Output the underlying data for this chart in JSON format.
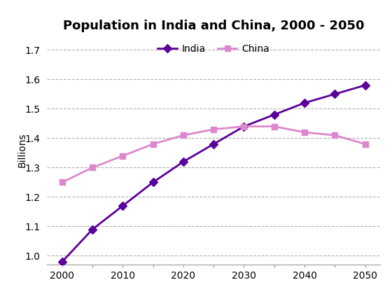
{
  "title": "Population in India and China, 2000 - 2050",
  "ylabel": "Billions",
  "years": [
    2000,
    2005,
    2010,
    2015,
    2020,
    2025,
    2030,
    2035,
    2040,
    2045,
    2050
  ],
  "india": [
    0.98,
    1.09,
    1.17,
    1.25,
    1.32,
    1.38,
    1.44,
    1.48,
    1.52,
    1.55,
    1.58
  ],
  "china": [
    1.25,
    1.3,
    1.34,
    1.38,
    1.41,
    1.43,
    1.44,
    1.44,
    1.42,
    1.41,
    1.38
  ],
  "india_color": "#5B009A",
  "china_color": "#DD88CC",
  "india_marker": "D",
  "china_marker": "s",
  "ylim": [
    0.97,
    1.75
  ],
  "yticks": [
    1.0,
    1.1,
    1.2,
    1.3,
    1.4,
    1.5,
    1.6,
    1.7
  ],
  "xticks": [
    2000,
    2005,
    2010,
    2015,
    2020,
    2025,
    2030,
    2035,
    2040,
    2045,
    2050
  ],
  "xtick_labels": [
    "2000",
    "",
    "2010",
    "",
    "2020",
    "",
    "2030",
    "",
    "2040",
    "",
    "2050"
  ],
  "grid_color": "#aaaaaa",
  "background_color": "#ffffff",
  "title_fontsize": 13,
  "label_fontsize": 10,
  "tick_fontsize": 10,
  "legend_fontsize": 10,
  "linewidth": 2.0,
  "markersize": 6
}
